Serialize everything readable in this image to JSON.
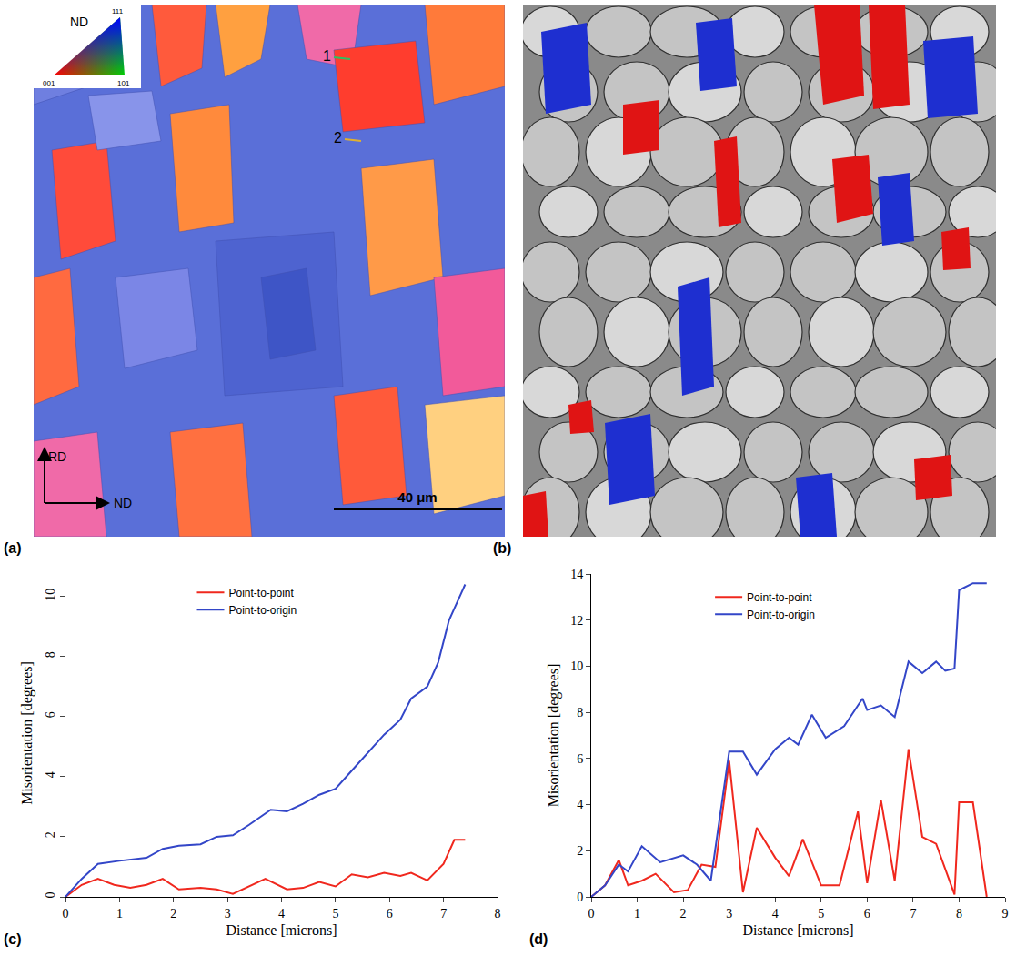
{
  "panel_labels": [
    "(a)",
    "(b)",
    "(c)",
    "(d)"
  ],
  "ebsd_map": {
    "legend_title": "ND",
    "legend_corners": [
      "001",
      "101",
      "111"
    ],
    "axis_labels": [
      "RD",
      "ND"
    ],
    "scale_bar": "40 μm",
    "markers": [
      "1",
      "2"
    ]
  },
  "chart_data": [
    {
      "type": "line",
      "x_label": "Distance [microns]",
      "y_label": "Misorientation [degrees]",
      "xlim": [
        0,
        8
      ],
      "xticks": [
        0,
        1,
        2,
        3,
        4,
        5,
        6,
        7,
        8
      ],
      "ylim": [
        0,
        10.9
      ],
      "yticks": [
        0,
        2,
        4,
        6,
        8,
        10
      ],
      "grid": false,
      "legend": "upper center",
      "series": [
        {
          "name": "Point-to-point",
          "color": "#f0281e",
          "x": [
            0,
            0.3,
            0.6,
            0.9,
            1.2,
            1.5,
            1.8,
            2.1,
            2.5,
            2.8,
            3.1,
            3.4,
            3.7,
            4.1,
            4.4,
            4.7,
            5.0,
            5.3,
            5.6,
            5.9,
            6.2,
            6.4,
            6.7,
            7.0,
            7.2,
            7.4
          ],
          "values": [
            0,
            0.4,
            0.6,
            0.4,
            0.3,
            0.4,
            0.6,
            0.25,
            0.3,
            0.25,
            0.1,
            0.35,
            0.6,
            0.25,
            0.3,
            0.5,
            0.35,
            0.75,
            0.65,
            0.8,
            0.7,
            0.8,
            0.55,
            1.1,
            1.9,
            1.9
          ]
        },
        {
          "name": "Point-to-origin",
          "color": "#3346c8",
          "x": [
            0,
            0.3,
            0.6,
            1.0,
            1.5,
            1.8,
            2.1,
            2.5,
            2.8,
            3.1,
            3.4,
            3.8,
            4.1,
            4.4,
            4.7,
            5.0,
            5.3,
            5.6,
            5.9,
            6.2,
            6.4,
            6.7,
            6.9,
            7.1,
            7.4
          ],
          "values": [
            0,
            0.6,
            1.1,
            1.2,
            1.3,
            1.6,
            1.7,
            1.75,
            2.0,
            2.05,
            2.4,
            2.9,
            2.85,
            3.1,
            3.4,
            3.6,
            4.2,
            4.8,
            5.4,
            5.9,
            6.6,
            7.0,
            7.8,
            9.2,
            10.4
          ]
        }
      ]
    },
    {
      "type": "line",
      "x_label": "Distance [microns]",
      "y_label": "Misorientation [degrees]",
      "xlim": [
        0,
        9
      ],
      "xticks": [
        0,
        1,
        2,
        3,
        4,
        5,
        6,
        7,
        8,
        9
      ],
      "ylim": [
        0,
        14
      ],
      "yticks": [
        0,
        2,
        4,
        6,
        8,
        10,
        12,
        14
      ],
      "grid": false,
      "legend": "upper center",
      "series": [
        {
          "name": "Point-to-point",
          "color": "#f0281e",
          "x": [
            0,
            0.3,
            0.6,
            0.8,
            1.1,
            1.4,
            1.8,
            2.1,
            2.4,
            2.7,
            3.0,
            3.3,
            3.6,
            4.0,
            4.3,
            4.6,
            5.0,
            5.4,
            5.8,
            6.0,
            6.3,
            6.6,
            6.9,
            7.2,
            7.5,
            7.9,
            8.0,
            8.3,
            8.6
          ],
          "values": [
            0,
            0.5,
            1.6,
            0.5,
            0.7,
            1.0,
            0.2,
            0.3,
            1.4,
            1.3,
            5.9,
            0.2,
            3.0,
            1.7,
            0.9,
            2.5,
            0.5,
            0.5,
            3.7,
            0.6,
            4.2,
            0.7,
            6.4,
            2.6,
            2.3,
            0.1,
            4.1,
            4.1,
            0
          ]
        },
        {
          "name": "Point-to-origin",
          "color": "#3346c8",
          "x": [
            0,
            0.3,
            0.6,
            0.8,
            1.1,
            1.5,
            2.0,
            2.3,
            2.6,
            3.0,
            3.3,
            3.6,
            4.0,
            4.3,
            4.5,
            4.8,
            5.1,
            5.5,
            5.9,
            6.0,
            6.3,
            6.6,
            6.9,
            7.2,
            7.5,
            7.7,
            7.9,
            8.0,
            8.3,
            8.6
          ],
          "values": [
            0,
            0.5,
            1.4,
            1.1,
            2.2,
            1.5,
            1.8,
            1.4,
            0.7,
            6.3,
            6.3,
            5.3,
            6.4,
            6.9,
            6.6,
            7.9,
            6.9,
            7.4,
            8.6,
            8.1,
            8.3,
            7.8,
            10.2,
            9.7,
            10.2,
            9.8,
            9.9,
            13.3,
            13.6,
            13.6
          ]
        }
      ]
    }
  ]
}
